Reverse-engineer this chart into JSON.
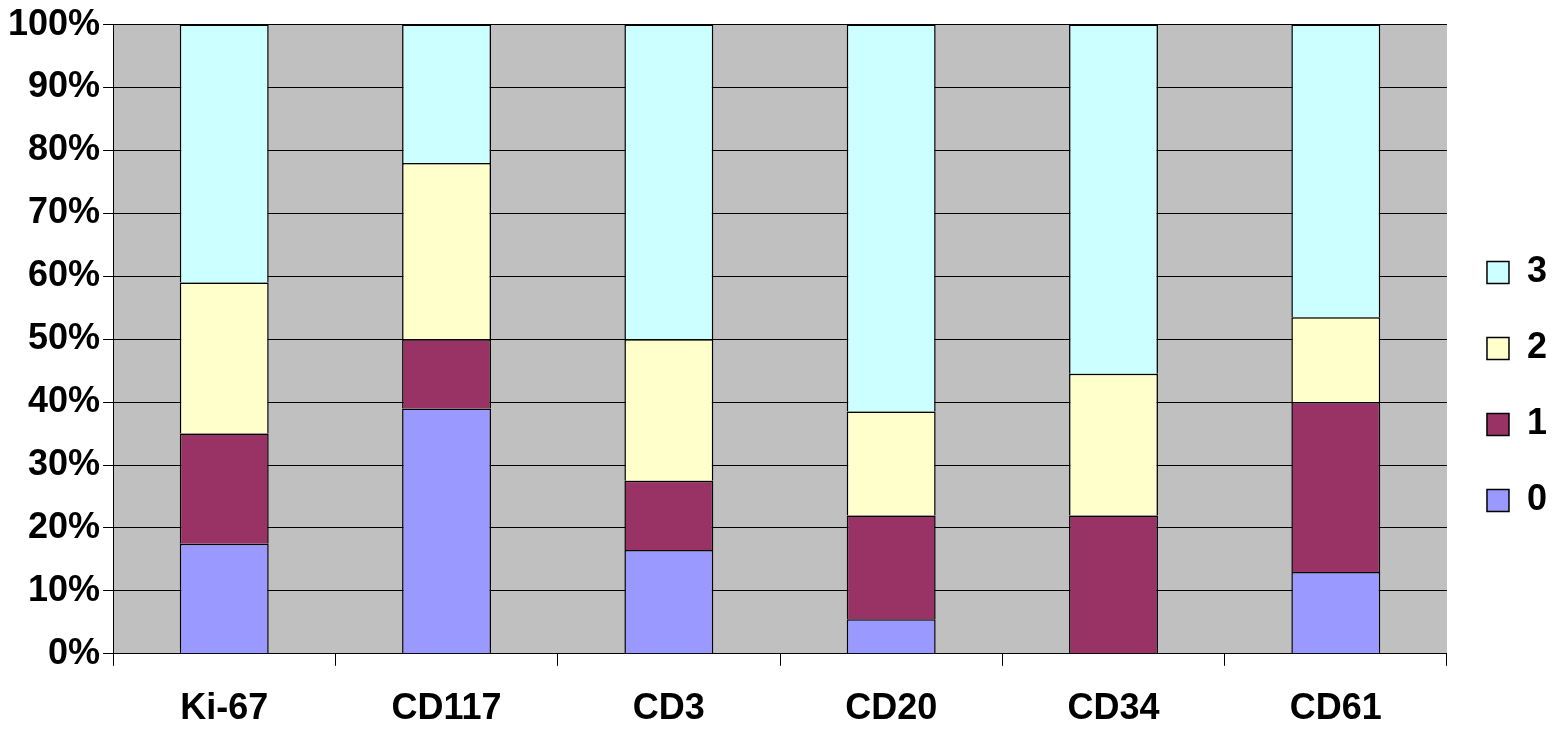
{
  "chart_data": {
    "type": "bar",
    "stacked": true,
    "categories": [
      "Ki-67",
      "CD117",
      "CD3",
      "CD20",
      "CD34",
      "CD61"
    ],
    "series": [
      {
        "name": "0",
        "color": "#9999ff",
        "values": [
          17.5,
          39,
          16.5,
          5.5,
          0,
          13
        ]
      },
      {
        "name": "1",
        "color": "#993366",
        "values": [
          17.5,
          11,
          11,
          16.5,
          22,
          27
        ]
      },
      {
        "name": "2",
        "color": "#ffffcc",
        "values": [
          24,
          28,
          22.5,
          16.5,
          22.5,
          13.5
        ]
      },
      {
        "name": "3",
        "color": "#ccffff",
        "values": [
          41,
          22,
          50,
          61.5,
          55.5,
          46.5
        ]
      }
    ],
    "ylim": [
      0,
      100
    ],
    "yticks": [
      {
        "value": 0,
        "label": "0%"
      },
      {
        "value": 10,
        "label": "10%"
      },
      {
        "value": 20,
        "label": "20%"
      },
      {
        "value": 30,
        "label": "30%"
      },
      {
        "value": 40,
        "label": "40%"
      },
      {
        "value": 50,
        "label": "50%"
      },
      {
        "value": 60,
        "label": "60%"
      },
      {
        "value": 70,
        "label": "70%"
      },
      {
        "value": 80,
        "label": "80%"
      },
      {
        "value": 90,
        "label": "90%"
      },
      {
        "value": 100,
        "label": "100%"
      }
    ],
    "grid": "y",
    "legend": "right"
  }
}
